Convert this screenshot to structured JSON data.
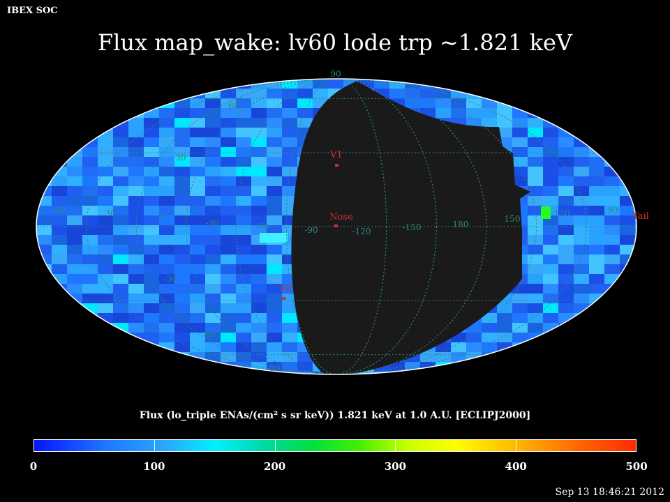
{
  "header": {
    "org": "IBEX SOC",
    "title": "Flux   map_wake: lv60 lode trp ~1.821 keV"
  },
  "footer": {
    "timestamp": "Sep 13 18:46:21 2012"
  },
  "colorbar": {
    "title": "Flux (lo_triple ENAs/(cm² s sr keV))  1.821 keV at 1.0 A.U. [ECLIPJ2000]",
    "labels": [
      "0",
      "100",
      "200",
      "300",
      "400",
      "500"
    ],
    "min": 0,
    "max": 500
  },
  "map": {
    "projection": "Aitoff/Hammer ellipse",
    "masked_color": "#1a1a1a",
    "grid_color": "#2a8a80",
    "longitude_labels": [
      "60",
      "30",
      "0",
      "-30",
      "-60",
      "-90",
      "-120",
      "-150",
      "180",
      "150",
      "120",
      "90"
    ],
    "latitude_labels": [
      "90",
      "60",
      "30",
      "-30",
      "-60",
      "-90"
    ],
    "markers": [
      {
        "label": "V1"
      },
      {
        "label": "Nose"
      },
      {
        "label": "V2"
      },
      {
        "label": "Tail"
      }
    ]
  }
}
